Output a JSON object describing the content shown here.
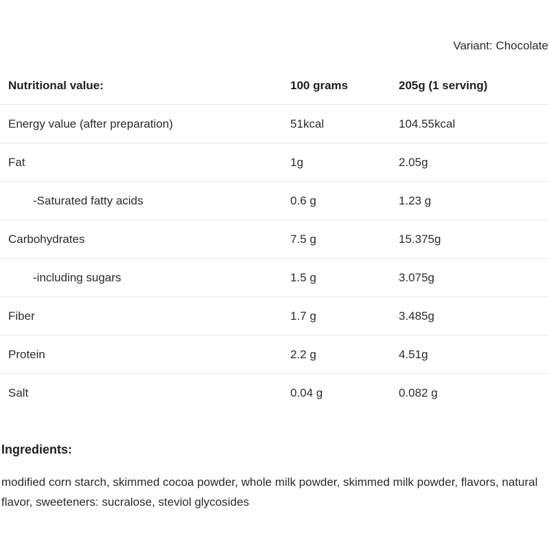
{
  "variant": "Variant: Chocolate",
  "table": {
    "headers": {
      "name": "Nutritional value:",
      "per100": "100 grams",
      "serving": "205g (1 serving)"
    },
    "rows": [
      {
        "name": "Energy value (after preparation)",
        "per100": "51kcal",
        "serving": "104.55kcal"
      },
      {
        "name": "Fat",
        "per100": "1g",
        "serving": "2.05g"
      },
      {
        "name": "-Saturated fatty acids",
        "per100": "0.6 g",
        "serving": "1.23 g"
      },
      {
        "name": "Carbohydrates",
        "per100": "7.5 g",
        "serving": "15.375g"
      },
      {
        "name": "-including sugars",
        "per100": "1.5 g",
        "serving": "3.075g"
      },
      {
        "name": "Fiber",
        "per100": "1.7 g",
        "serving": "3.485g"
      },
      {
        "name": "Protein",
        "per100": "2.2 g",
        "serving": "4.51g"
      },
      {
        "name": "Salt",
        "per100": "0.04 g",
        "serving": "0.082 g"
      }
    ]
  },
  "ingredients": {
    "title": "Ingredients:",
    "text": "modified corn starch, skimmed cocoa powder, whole milk powder, skimmed milk powder, flavors, natural flavor, sweeteners: sucralose, steviol glycosides"
  }
}
